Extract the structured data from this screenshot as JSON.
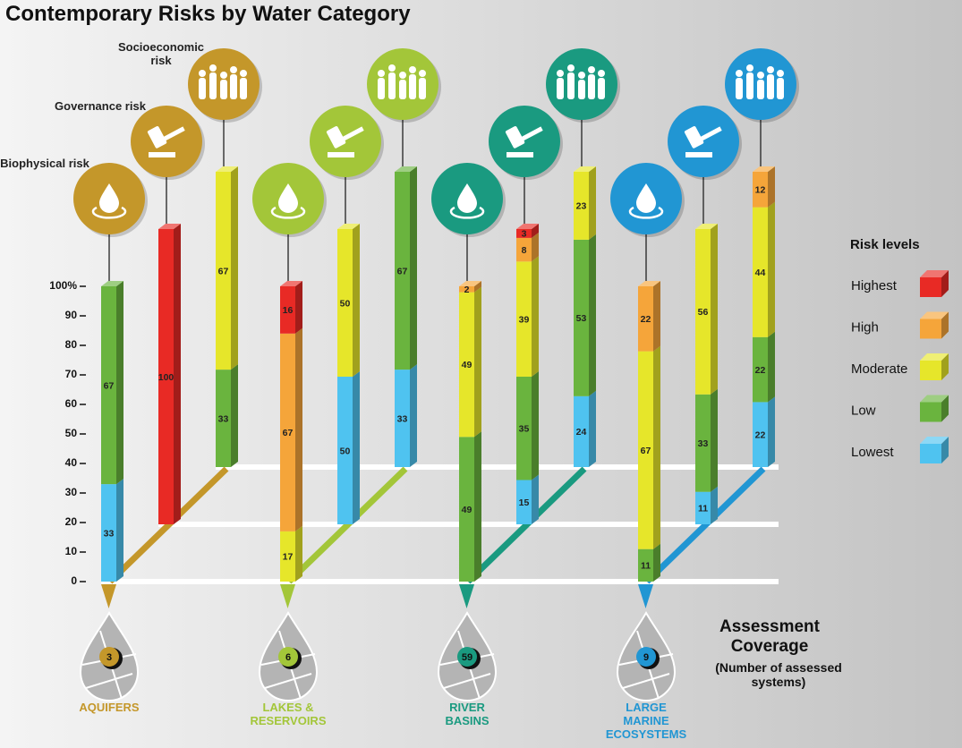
{
  "chart_data": {
    "type": "bar",
    "stacked": true,
    "title": "Contemporary Risks by Water Category",
    "risk_types": [
      "Biophysical risk",
      "Governance risk",
      "Socioeconomic risk"
    ],
    "groups": [
      {
        "name": "AQUIFERS",
        "coverage": 3,
        "color": "#c4972a"
      },
      {
        "name": "LAKES & RESERVOIRS",
        "coverage": 6,
        "color": "#a3c639"
      },
      {
        "name": "RIVER BASINS",
        "coverage": 59,
        "color": "#1a9a80"
      },
      {
        "name": "LARGE MARINE ECOSYSTEMS",
        "coverage": 9,
        "color": "#2196d3"
      }
    ],
    "ylim": [
      0,
      100
    ],
    "yticks": [
      0,
      10,
      20,
      30,
      40,
      50,
      60,
      70,
      80,
      90,
      {
        "value": 100,
        "label": "100%"
      }
    ],
    "legend_title": "Risk levels",
    "series": [
      {
        "name": "Lowest",
        "color": "#4fc3f0",
        "values": [
          33,
          null,
          null,
          null,
          50,
          33,
          null,
          15,
          24,
          null,
          11,
          22
        ]
      },
      {
        "name": "Low",
        "color": "#6ab43e",
        "values": [
          67,
          null,
          33,
          null,
          null,
          67,
          49,
          35,
          53,
          11,
          33,
          22
        ]
      },
      {
        "name": "Moderate",
        "color": "#e6e62a",
        "values": [
          null,
          null,
          67,
          17,
          50,
          null,
          49,
          39,
          23,
          67,
          56,
          44
        ]
      },
      {
        "name": "High",
        "color": "#f5a53a",
        "values": [
          null,
          null,
          null,
          67,
          null,
          null,
          2,
          8,
          null,
          22,
          null,
          12
        ]
      },
      {
        "name": "Highest",
        "color": "#e82a25",
        "values": [
          null,
          100,
          null,
          16,
          null,
          null,
          null,
          3,
          null,
          null,
          null,
          null
        ]
      }
    ],
    "coverage_title": "Assessment Coverage",
    "coverage_subtitle": "(Number of assessed systems)"
  }
}
